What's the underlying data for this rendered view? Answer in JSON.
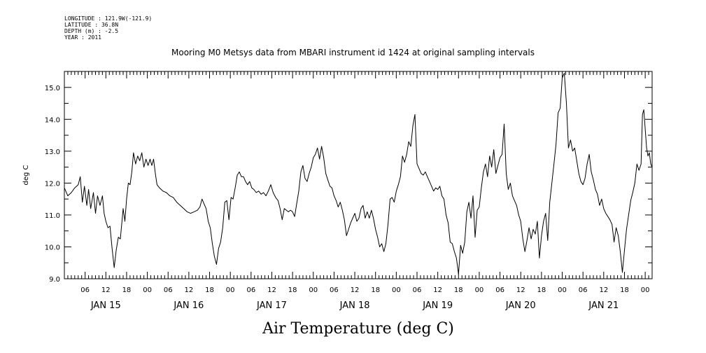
{
  "header": {
    "longitude": "LONGITUDE : 121.9W(-121.9)",
    "latitude": "LATITUDE : 36.8N",
    "depth": "DEPTH (m) : -2.5",
    "year": "YEAR : 2011"
  },
  "chart_data": {
    "type": "line",
    "title": "Mooring M0 Metsys data from MBARI instrument id 1424 at original sampling intervals",
    "xlabel": "Air Temperature (deg C)",
    "ylabel": "deg C",
    "ylim": [
      9.0,
      15.5
    ],
    "yticks": [
      "9.0",
      "10.0",
      "11.0",
      "12.0",
      "13.0",
      "14.0",
      "15.0"
    ],
    "xlim_hours": [
      0,
      170
    ],
    "hour_tick_labels": [
      "06",
      "12",
      "18",
      "00",
      "06",
      "12",
      "18",
      "00",
      "06",
      "12",
      "18",
      "00",
      "06",
      "12",
      "18",
      "00",
      "06",
      "12",
      "18",
      "00",
      "06",
      "12",
      "18",
      "00",
      "06",
      "12",
      "18",
      "00"
    ],
    "day_labels": [
      "JAN 15",
      "JAN 16",
      "JAN 17",
      "JAN 18",
      "JAN 19",
      "JAN 20",
      "JAN 21"
    ],
    "grid": false,
    "series": [
      {
        "color": "#000000",
        "points": [
          [
            0,
            11.85
          ],
          [
            1,
            11.6
          ],
          [
            2,
            11.7
          ],
          [
            3,
            11.85
          ],
          [
            4,
            11.95
          ],
          [
            4.6,
            12.2
          ],
          [
            5.2,
            11.4
          ],
          [
            5.8,
            11.9
          ],
          [
            6.5,
            11.3
          ],
          [
            7,
            11.8
          ],
          [
            7.6,
            11.2
          ],
          [
            8.4,
            11.7
          ],
          [
            9,
            11.05
          ],
          [
            9.6,
            11.6
          ],
          [
            10.3,
            11.3
          ],
          [
            11,
            11.6
          ],
          [
            11.5,
            11.05
          ],
          [
            12,
            10.8
          ],
          [
            12.6,
            10.6
          ],
          [
            13.2,
            10.65
          ],
          [
            13.8,
            9.95
          ],
          [
            14.4,
            9.35
          ],
          [
            15,
            9.9
          ],
          [
            15.6,
            10.3
          ],
          [
            16.2,
            10.25
          ],
          [
            17,
            11.2
          ],
          [
            17.5,
            10.8
          ],
          [
            18,
            11.5
          ],
          [
            18.5,
            12.0
          ],
          [
            19,
            11.95
          ],
          [
            19.5,
            12.35
          ],
          [
            20,
            12.95
          ],
          [
            20.6,
            12.6
          ],
          [
            21.2,
            12.85
          ],
          [
            21.8,
            12.7
          ],
          [
            22.4,
            12.95
          ],
          [
            23,
            12.5
          ],
          [
            23.6,
            12.75
          ],
          [
            24.2,
            12.55
          ],
          [
            24.8,
            12.75
          ],
          [
            25.3,
            12.55
          ],
          [
            25.8,
            12.75
          ],
          [
            26.3,
            12.3
          ],
          [
            26.8,
            11.95
          ],
          [
            27.5,
            11.85
          ],
          [
            28.5,
            11.75
          ],
          [
            29.5,
            11.7
          ],
          [
            30.5,
            11.6
          ],
          [
            31.5,
            11.55
          ],
          [
            32.5,
            11.4
          ],
          [
            33.5,
            11.3
          ],
          [
            34.5,
            11.2
          ],
          [
            35.5,
            11.1
          ],
          [
            36.5,
            11.05
          ],
          [
            37.5,
            11.1
          ],
          [
            38.5,
            11.15
          ],
          [
            39.2,
            11.25
          ],
          [
            39.8,
            11.5
          ],
          [
            40.4,
            11.35
          ],
          [
            41,
            11.2
          ],
          [
            41.6,
            10.8
          ],
          [
            42.2,
            10.6
          ],
          [
            42.8,
            10.1
          ],
          [
            43.4,
            9.7
          ],
          [
            44,
            9.45
          ],
          [
            44.6,
            9.95
          ],
          [
            45.2,
            10.15
          ],
          [
            45.8,
            10.6
          ],
          [
            46.4,
            11.4
          ],
          [
            47,
            11.45
          ],
          [
            47.6,
            10.85
          ],
          [
            48.2,
            11.55
          ],
          [
            48.8,
            11.5
          ],
          [
            49.4,
            11.85
          ],
          [
            50,
            12.25
          ],
          [
            50.6,
            12.35
          ],
          [
            51.2,
            12.2
          ],
          [
            51.8,
            12.2
          ],
          [
            52.4,
            12.05
          ],
          [
            53,
            11.95
          ],
          [
            53.6,
            12.05
          ],
          [
            54.2,
            11.85
          ],
          [
            54.8,
            11.8
          ],
          [
            55.5,
            11.7
          ],
          [
            56.2,
            11.75
          ],
          [
            56.9,
            11.65
          ],
          [
            57.6,
            11.7
          ],
          [
            58.3,
            11.6
          ],
          [
            59,
            11.75
          ],
          [
            59.7,
            11.95
          ],
          [
            60.4,
            11.7
          ],
          [
            61.1,
            11.55
          ],
          [
            61.8,
            11.45
          ],
          [
            62.4,
            11.2
          ],
          [
            63,
            10.85
          ],
          [
            63.6,
            11.2
          ],
          [
            64.2,
            11.15
          ],
          [
            64.8,
            11.1
          ],
          [
            65.4,
            11.15
          ],
          [
            66,
            11.1
          ],
          [
            66.6,
            10.95
          ],
          [
            67.2,
            11.35
          ],
          [
            67.8,
            11.75
          ],
          [
            68.4,
            12.35
          ],
          [
            69,
            12.55
          ],
          [
            69.6,
            12.15
          ],
          [
            70.2,
            12.05
          ],
          [
            70.8,
            12.3
          ],
          [
            71.4,
            12.5
          ],
          [
            72,
            12.8
          ],
          [
            72.6,
            12.9
          ],
          [
            73.2,
            13.1
          ],
          [
            73.8,
            12.75
          ],
          [
            74.4,
            13.15
          ],
          [
            75,
            12.8
          ],
          [
            75.6,
            12.3
          ],
          [
            76.2,
            12.1
          ],
          [
            76.8,
            11.9
          ],
          [
            77.4,
            11.85
          ],
          [
            78,
            11.6
          ],
          [
            78.6,
            11.45
          ],
          [
            79.2,
            11.25
          ],
          [
            79.8,
            11.4
          ],
          [
            80.4,
            11.15
          ],
          [
            81,
            10.85
          ],
          [
            81.6,
            10.35
          ],
          [
            82.2,
            10.55
          ],
          [
            82.8,
            10.75
          ],
          [
            83.4,
            10.9
          ],
          [
            84,
            11.05
          ],
          [
            84.6,
            10.8
          ],
          [
            85.2,
            10.9
          ],
          [
            85.8,
            11.2
          ],
          [
            86.4,
            11.3
          ],
          [
            87,
            10.9
          ],
          [
            87.6,
            11.1
          ],
          [
            88.2,
            10.9
          ],
          [
            88.8,
            11.15
          ],
          [
            89.4,
            10.9
          ],
          [
            90,
            10.55
          ],
          [
            90.6,
            10.3
          ],
          [
            91.2,
            10.0
          ],
          [
            91.8,
            10.1
          ],
          [
            92.4,
            9.85
          ],
          [
            93,
            10.1
          ],
          [
            93.6,
            10.7
          ],
          [
            94.2,
            11.5
          ],
          [
            94.8,
            11.55
          ],
          [
            95.4,
            11.4
          ],
          [
            96,
            11.75
          ],
          [
            96.6,
            11.95
          ],
          [
            97.2,
            12.2
          ],
          [
            97.8,
            12.85
          ],
          [
            98.4,
            12.65
          ],
          [
            99,
            12.9
          ],
          [
            99.6,
            13.3
          ],
          [
            100.2,
            13.15
          ],
          [
            100.8,
            13.8
          ],
          [
            101.4,
            14.15
          ],
          [
            102,
            12.6
          ],
          [
            102.6,
            12.45
          ],
          [
            103.2,
            12.3
          ],
          [
            103.8,
            12.25
          ],
          [
            104.4,
            12.35
          ],
          [
            105,
            12.2
          ],
          [
            105.6,
            12.05
          ],
          [
            106.2,
            11.9
          ],
          [
            106.8,
            11.75
          ],
          [
            107.4,
            11.85
          ],
          [
            108,
            11.8
          ],
          [
            108.6,
            11.9
          ],
          [
            109.2,
            11.6
          ],
          [
            109.8,
            11.5
          ],
          [
            110.4,
            11.0
          ],
          [
            111,
            10.75
          ],
          [
            111.6,
            10.15
          ],
          [
            112.2,
            10.1
          ],
          [
            112.8,
            9.85
          ],
          [
            113.4,
            9.65
          ],
          [
            114,
            9.15
          ],
          [
            114.6,
            10.05
          ],
          [
            115.2,
            9.8
          ],
          [
            115.8,
            10.15
          ],
          [
            116.4,
            11.1
          ],
          [
            117,
            11.4
          ],
          [
            117.6,
            10.9
          ],
          [
            118.2,
            11.6
          ],
          [
            118.8,
            10.3
          ],
          [
            119.4,
            11.15
          ],
          [
            120,
            11.25
          ],
          [
            120.6,
            11.85
          ],
          [
            121.2,
            12.35
          ],
          [
            121.8,
            12.6
          ],
          [
            122.4,
            12.2
          ],
          [
            123,
            12.85
          ],
          [
            123.6,
            12.5
          ],
          [
            124.2,
            13.05
          ],
          [
            124.8,
            12.3
          ],
          [
            125.4,
            12.55
          ],
          [
            126,
            12.8
          ],
          [
            126.6,
            12.9
          ],
          [
            127.2,
            13.85
          ],
          [
            127.8,
            12.3
          ],
          [
            128.4,
            11.8
          ],
          [
            129,
            12.0
          ],
          [
            129.6,
            11.6
          ],
          [
            130.2,
            11.45
          ],
          [
            130.8,
            11.3
          ],
          [
            131.4,
            11.0
          ],
          [
            132,
            10.8
          ],
          [
            132.6,
            10.25
          ],
          [
            133.2,
            9.85
          ],
          [
            133.8,
            10.2
          ],
          [
            134.4,
            10.6
          ],
          [
            135,
            10.25
          ],
          [
            135.6,
            10.55
          ],
          [
            136.2,
            10.4
          ],
          [
            136.8,
            10.8
          ],
          [
            137.4,
            9.65
          ],
          [
            138,
            10.35
          ],
          [
            138.6,
            10.8
          ],
          [
            139.2,
            11.05
          ],
          [
            139.8,
            10.2
          ],
          [
            140.4,
            11.4
          ],
          [
            141,
            12.0
          ],
          [
            141.6,
            12.6
          ],
          [
            142.2,
            13.2
          ],
          [
            142.8,
            14.2
          ],
          [
            143.4,
            14.35
          ],
          [
            144,
            15.3
          ],
          [
            144.6,
            15.45
          ],
          [
            145.2,
            14.5
          ],
          [
            145.8,
            13.1
          ],
          [
            146.4,
            13.35
          ],
          [
            147,
            13.0
          ],
          [
            147.6,
            13.1
          ],
          [
            148.2,
            12.7
          ],
          [
            148.8,
            12.3
          ],
          [
            149.4,
            12.05
          ],
          [
            150,
            11.95
          ],
          [
            150.6,
            12.15
          ],
          [
            151.2,
            12.6
          ],
          [
            151.8,
            12.9
          ],
          [
            152.4,
            12.35
          ],
          [
            153,
            12.1
          ],
          [
            153.6,
            11.8
          ],
          [
            154.2,
            11.65
          ],
          [
            154.8,
            11.3
          ],
          [
            155.4,
            11.5
          ],
          [
            156,
            11.2
          ],
          [
            156.6,
            11.05
          ],
          [
            157.2,
            10.95
          ],
          [
            157.8,
            10.85
          ],
          [
            158.4,
            10.7
          ],
          [
            159,
            10.15
          ],
          [
            159.6,
            10.6
          ],
          [
            160.2,
            10.35
          ],
          [
            160.8,
            9.85
          ],
          [
            161.4,
            9.2
          ],
          [
            162,
            9.9
          ],
          [
            162.6,
            10.55
          ],
          [
            163.2,
            11.0
          ],
          [
            163.8,
            11.45
          ],
          [
            164.4,
            11.7
          ],
          [
            165,
            12.0
          ],
          [
            165.6,
            12.6
          ],
          [
            166.2,
            12.4
          ],
          [
            166.8,
            12.6
          ],
          [
            167.2,
            14.15
          ],
          [
            167.6,
            14.3
          ],
          [
            168,
            13.7
          ],
          [
            168.4,
            13.1
          ],
          [
            168.8,
            12.85
          ],
          [
            169.2,
            12.95
          ],
          [
            169.6,
            12.6
          ],
          [
            170,
            12.5
          ]
        ]
      }
    ]
  }
}
